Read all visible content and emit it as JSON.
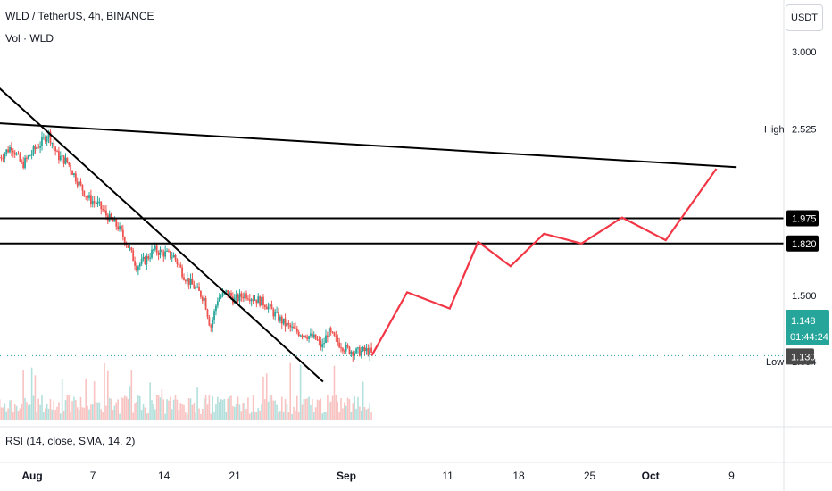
{
  "header": {
    "symbol_title": "WLD / TetherUS, 4h, BINANCE",
    "volume_label": "Vol · WLD",
    "currency_button": "USDT"
  },
  "rsi": {
    "label": "RSI (14, close, SMA, 14, 2)"
  },
  "price_axis": {
    "ticks": [
      {
        "value": 3.0,
        "label": "3.000"
      },
      {
        "value": 1.5,
        "label": "1.500"
      }
    ],
    "high": {
      "label": "High",
      "value": "2.525",
      "price": 2.525
    },
    "low": {
      "label": "Low",
      "value": "1.094",
      "price": 1.094
    },
    "levels": [
      {
        "label": "1.975",
        "value": 1.975
      },
      {
        "label": "1.820",
        "value": 1.82
      }
    ],
    "last_price": {
      "value": "1.148",
      "countdown": "01:44:24",
      "price": 1.148
    },
    "ref_price": {
      "value": "1.130",
      "price": 1.13
    }
  },
  "time_axis": {
    "ticks": [
      {
        "label": "Aug",
        "day": 0,
        "bold": true
      },
      {
        "label": "7",
        "day": 6
      },
      {
        "label": "14",
        "day": 13
      },
      {
        "label": "21",
        "day": 20
      },
      {
        "label": "Sep",
        "day": 31,
        "bold": true
      },
      {
        "label": "11",
        "day": 41
      },
      {
        "label": "18",
        "day": 48
      },
      {
        "label": "25",
        "day": 55
      },
      {
        "label": "Oct",
        "day": 61,
        "bold": true
      },
      {
        "label": "9",
        "day": 69
      }
    ]
  },
  "colors": {
    "up": "#26a69a",
    "down": "#ef5350",
    "projection": "#f23645",
    "trendline": "#000000",
    "last_price_bg": "#26a69a",
    "grid_dotted": "#26a69a"
  },
  "chart_data": {
    "type": "candlestick",
    "title": "WLD / TetherUS, 4h, BINANCE",
    "y_unit": "USDT",
    "x_unit": "days since Aug 1",
    "ylim": [
      0.96,
      3.1
    ],
    "xlim": [
      -3.3,
      75
    ],
    "grid": false,
    "close_path": [
      {
        "day": -3.2,
        "price": 2.35
      },
      {
        "day": -2.0,
        "price": 2.42
      },
      {
        "day": -1.0,
        "price": 2.3
      },
      {
        "day": 0.0,
        "price": 2.38
      },
      {
        "day": 1.0,
        "price": 2.45
      },
      {
        "day": 1.6,
        "price": 2.5
      },
      {
        "day": 2.5,
        "price": 2.36
      },
      {
        "day": 3.5,
        "price": 2.32
      },
      {
        "day": 4.5,
        "price": 2.2
      },
      {
        "day": 5.5,
        "price": 2.1
      },
      {
        "day": 6.5,
        "price": 2.06
      },
      {
        "day": 7.5,
        "price": 1.98
      },
      {
        "day": 8.5,
        "price": 1.92
      },
      {
        "day": 9.5,
        "price": 1.8
      },
      {
        "day": 10.3,
        "price": 1.68
      },
      {
        "day": 11.2,
        "price": 1.72
      },
      {
        "day": 12.0,
        "price": 1.78
      },
      {
        "day": 13.0,
        "price": 1.76
      },
      {
        "day": 14.0,
        "price": 1.74
      },
      {
        "day": 15.0,
        "price": 1.62
      },
      {
        "day": 16.0,
        "price": 1.55
      },
      {
        "day": 17.0,
        "price": 1.48
      },
      {
        "day": 17.6,
        "price": 1.3
      },
      {
        "day": 18.3,
        "price": 1.48
      },
      {
        "day": 19.2,
        "price": 1.52
      },
      {
        "day": 20.0,
        "price": 1.47
      },
      {
        "day": 21.0,
        "price": 1.51
      },
      {
        "day": 22.0,
        "price": 1.48
      },
      {
        "day": 23.0,
        "price": 1.45
      },
      {
        "day": 24.0,
        "price": 1.38
      },
      {
        "day": 25.0,
        "price": 1.32
      },
      {
        "day": 26.0,
        "price": 1.28
      },
      {
        "day": 27.0,
        "price": 1.26
      },
      {
        "day": 28.0,
        "price": 1.23
      },
      {
        "day": 28.6,
        "price": 1.18
      },
      {
        "day": 29.2,
        "price": 1.28
      },
      {
        "day": 30.0,
        "price": 1.22
      },
      {
        "day": 31.0,
        "price": 1.17
      },
      {
        "day": 32.0,
        "price": 1.15
      },
      {
        "day": 33.0,
        "price": 1.16
      },
      {
        "day": 33.5,
        "price": 1.148
      }
    ],
    "volume": {
      "description_free": true,
      "max_ratio": 1.0
    },
    "projection": [
      {
        "day": 33.5,
        "price": 1.13
      },
      {
        "day": 37.0,
        "price": 1.52
      },
      {
        "day": 41.2,
        "price": 1.42
      },
      {
        "day": 44.0,
        "price": 1.83
      },
      {
        "day": 47.2,
        "price": 1.68
      },
      {
        "day": 50.5,
        "price": 1.88
      },
      {
        "day": 54.2,
        "price": 1.82
      },
      {
        "day": 58.2,
        "price": 1.98
      },
      {
        "day": 62.5,
        "price": 1.84
      },
      {
        "day": 67.5,
        "price": 2.28
      }
    ],
    "trendlines": [
      {
        "from": {
          "day": -3.3,
          "price": 2.56
        },
        "to": {
          "day": 69.5,
          "price": 2.29
        }
      },
      {
        "from": {
          "day": -3.3,
          "price": 2.78
        },
        "to": {
          "day": 28.7,
          "price": 0.97
        }
      }
    ],
    "horizontal_levels": [
      1.975,
      1.82
    ]
  }
}
